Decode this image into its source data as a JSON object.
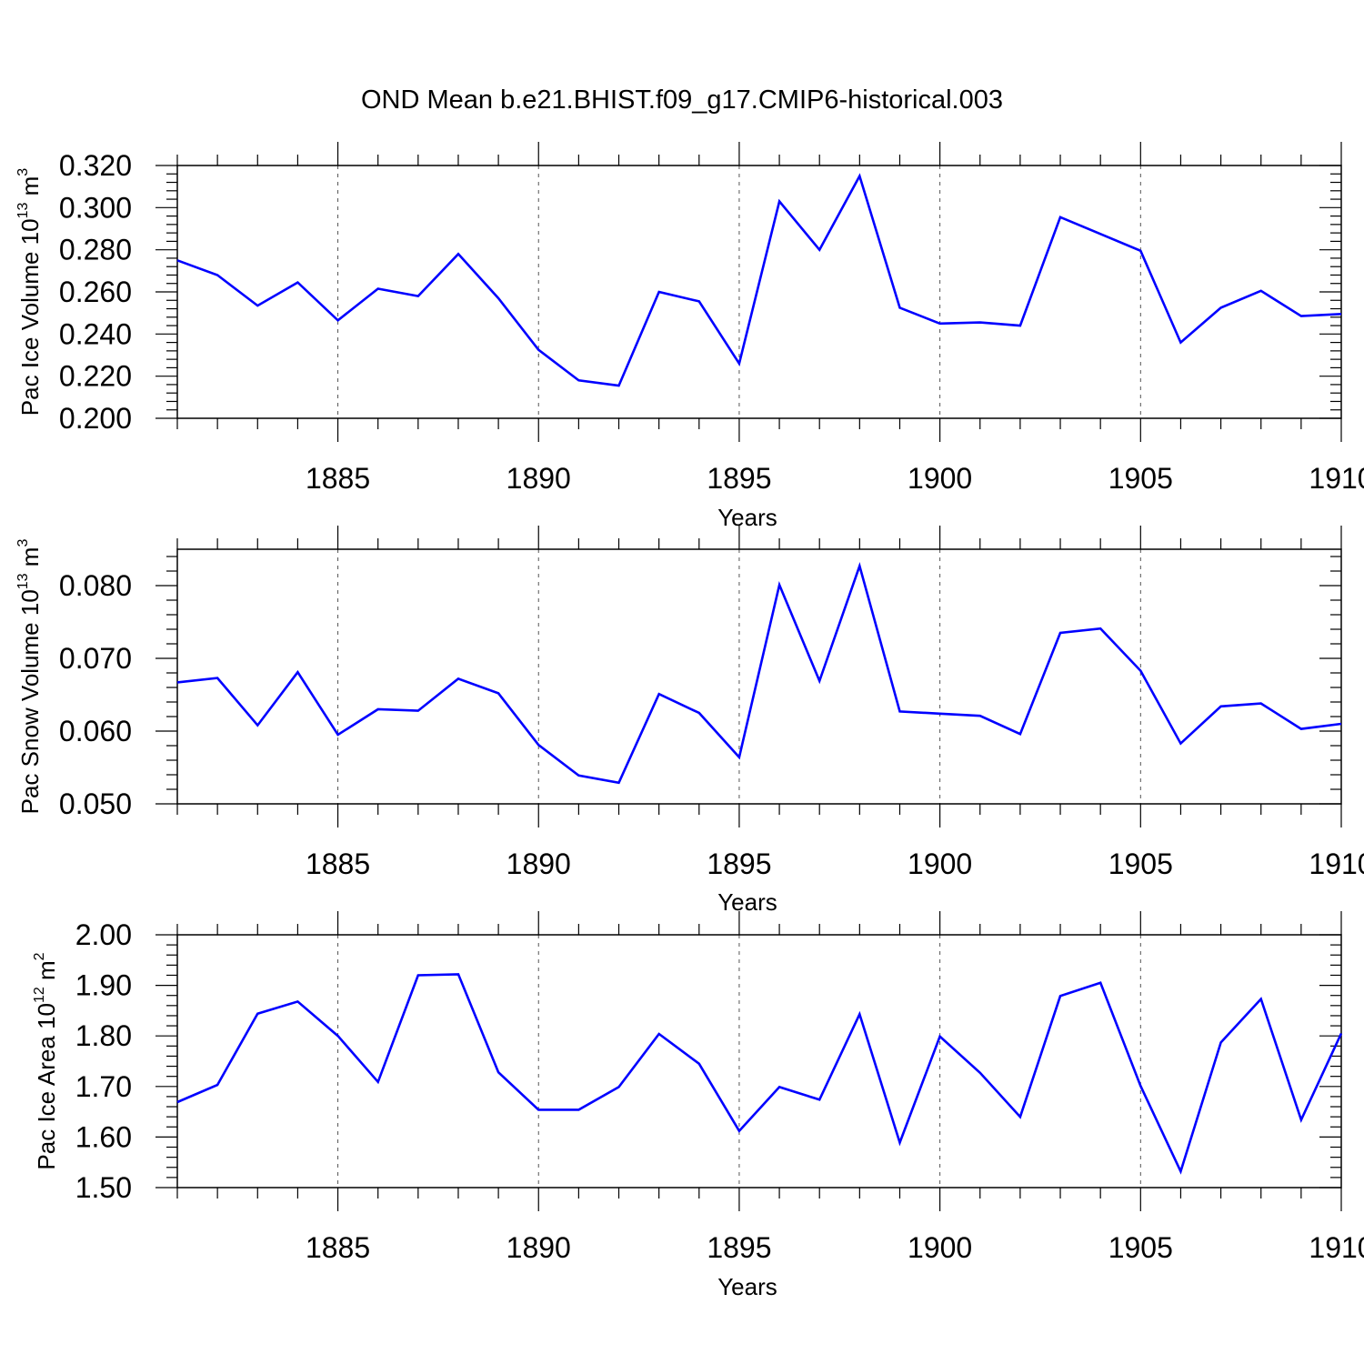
{
  "title": "OND Mean b.e21.BHIST.f09_g17.CMIP6-historical.003",
  "colors": {
    "line": "#0000ff",
    "axis": "#000000",
    "grid": "#555555"
  },
  "chart_data": [
    {
      "type": "line",
      "ylabel": {
        "text": "Pac Ice Volume 10",
        "exp": "13",
        "unit": " m",
        "unit_exp": "3"
      },
      "xlabel": "Years",
      "xlim": [
        1881,
        1910
      ],
      "ylim": [
        0.2,
        0.32
      ],
      "grid": "vertical dashed at labeled years",
      "x_ticks": [
        "1885",
        "1890",
        "1895",
        "1900",
        "1905",
        "1910"
      ],
      "y_ticks": [
        "0.200",
        "0.220",
        "0.240",
        "0.260",
        "0.280",
        "0.300",
        "0.320"
      ],
      "x": [
        1881,
        1882,
        1883,
        1884,
        1885,
        1886,
        1887,
        1888,
        1889,
        1890,
        1891,
        1892,
        1893,
        1894,
        1895,
        1896,
        1897,
        1898,
        1899,
        1900,
        1901,
        1902,
        1903,
        1904,
        1905,
        1906,
        1907,
        1908,
        1909,
        1910
      ],
      "values": [
        0.275,
        0.268,
        0.2535,
        0.2645,
        0.2465,
        0.2615,
        0.258,
        0.278,
        0.257,
        0.2325,
        0.218,
        0.2155,
        0.26,
        0.2555,
        0.226,
        0.303,
        0.28,
        0.315,
        0.2525,
        0.245,
        0.2455,
        0.244,
        0.2955,
        0.2875,
        0.2795,
        0.236,
        0.2525,
        0.2605,
        0.2485,
        0.2495
      ]
    },
    {
      "type": "line",
      "ylabel": {
        "text": "Pac Snow Volume 10",
        "exp": "13",
        "unit": " m",
        "unit_exp": "3"
      },
      "xlabel": "Years",
      "xlim": [
        1881,
        1910
      ],
      "ylim": [
        0.05,
        0.085
      ],
      "grid": "vertical dashed at labeled years",
      "x_ticks": [
        "1885",
        "1890",
        "1895",
        "1900",
        "1905",
        "1910"
      ],
      "y_ticks": [
        "0.050",
        "0.060",
        "0.070",
        "0.080"
      ],
      "x": [
        1881,
        1882,
        1883,
        1884,
        1885,
        1886,
        1887,
        1888,
        1889,
        1890,
        1891,
        1892,
        1893,
        1894,
        1895,
        1896,
        1897,
        1898,
        1899,
        1900,
        1901,
        1902,
        1903,
        1904,
        1905,
        1906,
        1907,
        1908,
        1909,
        1910
      ],
      "values": [
        0.0667,
        0.0673,
        0.0608,
        0.0681,
        0.0595,
        0.063,
        0.0628,
        0.0672,
        0.0652,
        0.0581,
        0.0539,
        0.0529,
        0.0651,
        0.0625,
        0.0564,
        0.0801,
        0.0669,
        0.0827,
        0.0627,
        0.0624,
        0.0621,
        0.0596,
        0.0735,
        0.0741,
        0.0683,
        0.0583,
        0.0634,
        0.0638,
        0.0603,
        0.061
      ]
    },
    {
      "type": "line",
      "ylabel": {
        "text": "Pac Ice Area 10",
        "exp": "12",
        "unit": " m",
        "unit_exp": "2"
      },
      "xlabel": "Years",
      "xlim": [
        1881,
        1910
      ],
      "ylim": [
        1.5,
        2.0
      ],
      "grid": "vertical dashed at labeled years",
      "x_ticks": [
        "1885",
        "1890",
        "1895",
        "1900",
        "1905",
        "1910"
      ],
      "y_ticks": [
        "1.50",
        "1.60",
        "1.70",
        "1.80",
        "1.90",
        "2.00"
      ],
      "x": [
        1881,
        1882,
        1883,
        1884,
        1885,
        1886,
        1887,
        1888,
        1889,
        1890,
        1891,
        1892,
        1893,
        1894,
        1895,
        1896,
        1897,
        1898,
        1899,
        1900,
        1901,
        1902,
        1903,
        1904,
        1905,
        1906,
        1907,
        1908,
        1909,
        1910
      ],
      "values": [
        1.669,
        1.703,
        1.844,
        1.868,
        1.8,
        1.709,
        1.92,
        1.922,
        1.728,
        1.654,
        1.654,
        1.699,
        1.804,
        1.745,
        1.612,
        1.699,
        1.674,
        1.843,
        1.589,
        1.799,
        1.727,
        1.64,
        1.879,
        1.905,
        1.701,
        1.532,
        1.787,
        1.873,
        1.634,
        1.805
      ]
    }
  ]
}
